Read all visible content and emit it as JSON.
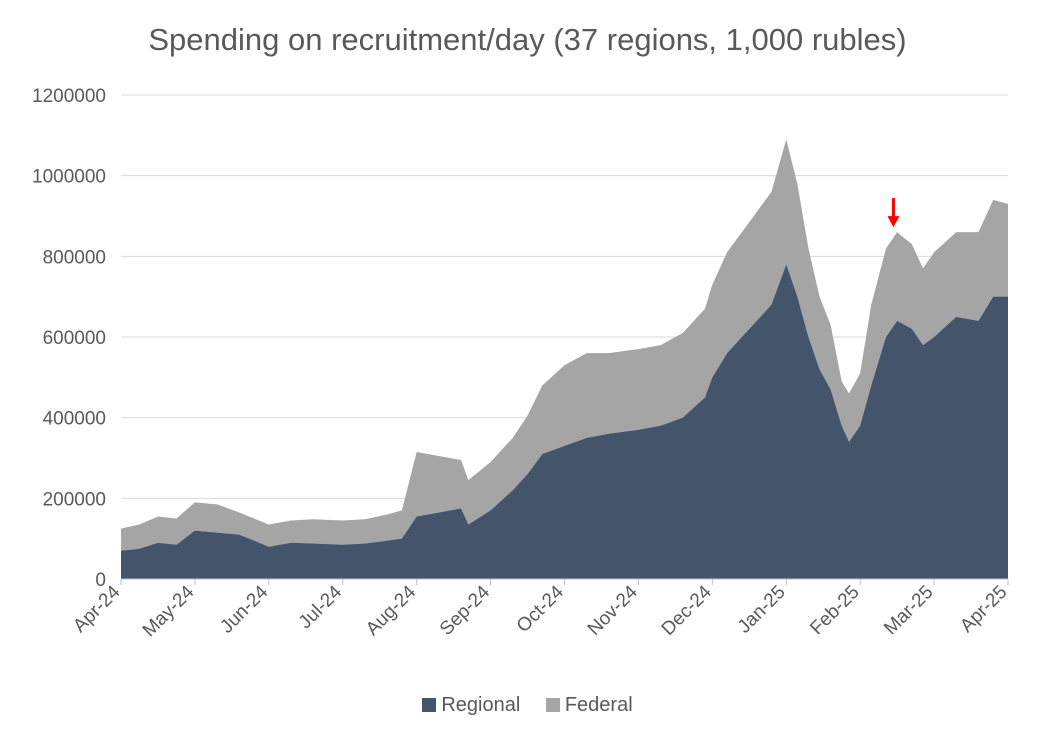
{
  "chart_data": {
    "type": "area",
    "stacked": true,
    "title": "Spending on recruitment/day (37 regions, 1,000 rubles)",
    "xlabel": "",
    "ylabel": "",
    "ylim": [
      0,
      1200000
    ],
    "yticks": [
      "0",
      "200000",
      "400000",
      "600000",
      "800000",
      "1000000",
      "1200000"
    ],
    "xticks": [
      "Apr-24",
      "May-24",
      "Jun-24",
      "Jul-24",
      "Aug-24",
      "Sep-24",
      "Oct-24",
      "Nov-24",
      "Dec-24",
      "Jan-25",
      "Feb-25",
      "Mar-25",
      "Apr-25"
    ],
    "grid": true,
    "legend_position": "bottom",
    "colors": {
      "regional": "#44546a",
      "federal": "#a5a5a5",
      "annotation": "#ff0000",
      "grid": "#d9d9d9",
      "text": "#595959"
    },
    "annotation": {
      "type": "arrow",
      "x_month": 10.45,
      "y_value": 870000
    },
    "series": [
      {
        "name": "Regional",
        "points": [
          [
            0,
            70000
          ],
          [
            0.25,
            75000
          ],
          [
            0.5,
            90000
          ],
          [
            0.75,
            85000
          ],
          [
            1,
            120000
          ],
          [
            1.3,
            115000
          ],
          [
            1.6,
            110000
          ],
          [
            1.8,
            95000
          ],
          [
            2,
            80000
          ],
          [
            2.3,
            90000
          ],
          [
            2.6,
            88000
          ],
          [
            3,
            85000
          ],
          [
            3.3,
            88000
          ],
          [
            3.6,
            95000
          ],
          [
            3.8,
            100000
          ],
          [
            4,
            155000
          ],
          [
            4.3,
            165000
          ],
          [
            4.6,
            175000
          ],
          [
            4.7,
            135000
          ],
          [
            5,
            170000
          ],
          [
            5.3,
            220000
          ],
          [
            5.5,
            260000
          ],
          [
            5.7,
            310000
          ],
          [
            6,
            330000
          ],
          [
            6.3,
            350000
          ],
          [
            6.6,
            360000
          ],
          [
            7,
            370000
          ],
          [
            7.3,
            380000
          ],
          [
            7.6,
            400000
          ],
          [
            7.9,
            450000
          ],
          [
            8,
            500000
          ],
          [
            8.2,
            560000
          ],
          [
            8.4,
            600000
          ],
          [
            8.6,
            640000
          ],
          [
            8.8,
            680000
          ],
          [
            9,
            780000
          ],
          [
            9.15,
            700000
          ],
          [
            9.3,
            600000
          ],
          [
            9.45,
            520000
          ],
          [
            9.6,
            470000
          ],
          [
            9.75,
            380000
          ],
          [
            9.85,
            340000
          ],
          [
            10,
            380000
          ],
          [
            10.15,
            480000
          ],
          [
            10.35,
            600000
          ],
          [
            10.5,
            640000
          ],
          [
            10.7,
            620000
          ],
          [
            10.85,
            580000
          ],
          [
            11,
            600000
          ],
          [
            11.3,
            650000
          ],
          [
            11.6,
            640000
          ],
          [
            11.8,
            700000
          ],
          [
            12,
            700000
          ]
        ]
      },
      {
        "name": "Federal",
        "points": [
          [
            0,
            55000
          ],
          [
            0.25,
            60000
          ],
          [
            0.5,
            65000
          ],
          [
            0.75,
            65000
          ],
          [
            1,
            70000
          ],
          [
            1.3,
            70000
          ],
          [
            1.6,
            55000
          ],
          [
            1.8,
            55000
          ],
          [
            2,
            55000
          ],
          [
            2.3,
            55000
          ],
          [
            2.6,
            60000
          ],
          [
            3,
            60000
          ],
          [
            3.3,
            60000
          ],
          [
            3.6,
            65000
          ],
          [
            3.8,
            70000
          ],
          [
            4,
            160000
          ],
          [
            4.3,
            140000
          ],
          [
            4.6,
            120000
          ],
          [
            4.7,
            110000
          ],
          [
            5,
            120000
          ],
          [
            5.3,
            130000
          ],
          [
            5.5,
            145000
          ],
          [
            5.7,
            170000
          ],
          [
            6,
            200000
          ],
          [
            6.3,
            210000
          ],
          [
            6.6,
            200000
          ],
          [
            7,
            200000
          ],
          [
            7.3,
            200000
          ],
          [
            7.6,
            210000
          ],
          [
            7.9,
            220000
          ],
          [
            8,
            230000
          ],
          [
            8.2,
            250000
          ],
          [
            8.4,
            260000
          ],
          [
            8.6,
            270000
          ],
          [
            8.8,
            280000
          ],
          [
            9,
            310000
          ],
          [
            9.15,
            280000
          ],
          [
            9.3,
            220000
          ],
          [
            9.45,
            180000
          ],
          [
            9.6,
            160000
          ],
          [
            9.75,
            110000
          ],
          [
            9.85,
            120000
          ],
          [
            10,
            130000
          ],
          [
            10.15,
            200000
          ],
          [
            10.35,
            220000
          ],
          [
            10.5,
            220000
          ],
          [
            10.7,
            210000
          ],
          [
            10.85,
            190000
          ],
          [
            11,
            210000
          ],
          [
            11.3,
            210000
          ],
          [
            11.6,
            220000
          ],
          [
            11.8,
            240000
          ],
          [
            12,
            230000
          ]
        ]
      }
    ]
  }
}
